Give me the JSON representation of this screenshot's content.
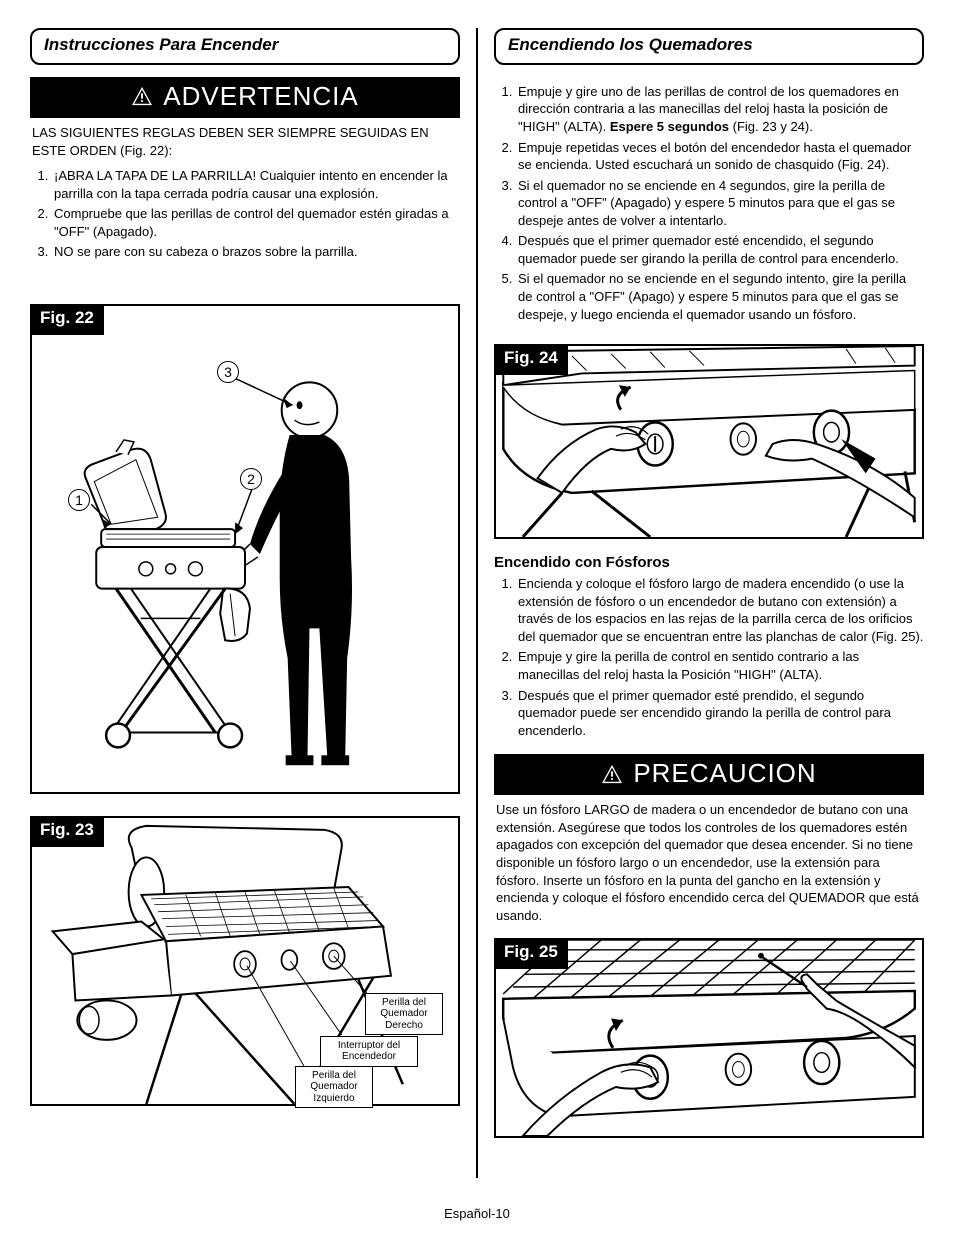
{
  "left": {
    "header": "Instrucciones Para Encender",
    "warning_label": "ADVERTENCIA",
    "intro": "LAS SIGUIENTES REGLAS DEBEN SER SIEMPRE SEGUIDAS EN ESTE ORDEN (Fig.  22):",
    "rules": [
      "¡ABRA LA TAPA DE LA PARRILLA! Cualquier intento en encender la parrilla con la tapa cerrada podría causar una explosión.",
      "Compruebe que las perillas de control del quemador estén giradas a \"OFF\" (Apagado).",
      "NO se pare  con su cabeza o brazos sobre la parrilla."
    ],
    "fig22": {
      "label": "Fig. 22",
      "callouts": {
        "c1": "1",
        "c2": "2",
        "c3": "3"
      }
    },
    "fig23": {
      "label": "Fig. 23",
      "box_right": "Perilla del\nQuemador\nDerecho",
      "box_mid": "Interruptor del\nEncendedor",
      "box_left": "Perilla del\nQuemador\nIzquierdo"
    }
  },
  "right": {
    "header": "Encendiendo los Quemadores",
    "steps": [
      {
        "pre": "Empuje y gire uno de las perillas de control de los quemadores en dirección contraria a las manecillas del reloj hasta la posición de  \"HIGH\" (ALTA). ",
        "bold": "Espere 5 segundos",
        "post": " (Fig.  23 y 24)."
      },
      {
        "pre": "Empuje repetidas veces el botón del encendedor hasta el quemador se encienda. Usted escuchará un sonido de chasquido (Fig.  24).",
        "bold": "",
        "post": ""
      },
      {
        "pre": "Si el quemador no se enciende en 4 segundos, gire la perilla de control a \"OFF\" (Apagado) y espere  5 minutos para que el gas se despeje antes de volver a  intentarlo.",
        "bold": "",
        "post": ""
      },
      {
        "pre": "Después que el primer quemador esté encendido, el segundo quemador puede ser girando la perilla de control para encenderlo.",
        "bold": "",
        "post": ""
      },
      {
        "pre": "Si el quemador no se enciende en el segundo intento, gire la perilla de control a \"OFF\" (Apago) y espere 5 minutos para que el gas se despeje, y luego encienda el quemador usando un  fósforo.",
        "bold": "",
        "post": ""
      }
    ],
    "fig24": {
      "label": "Fig. 24"
    },
    "match_header": "Encendido con Fósforos",
    "match_steps": [
      "Encienda y coloque el fósforo largo de madera encendido (o use la extensión de fósforo o un encendedor de butano con extensión) a través de los espacios en las rejas de la parrilla cerca de los orificios del quemador que se encuentran entre las planchas de calor (Fig.  25).",
      "Empuje y gire la perilla de control en sentido contrario a las manecillas del reloj hasta la Posición \"HIGH\" (ALTA).",
      "Después que el primer quemador esté prendido, el segundo quemador puede ser encendido girando la perilla de control para encenderlo."
    ],
    "caution_label": "PRECAUCION",
    "caution_text": "Use un fósforo LARGO de madera o un encendedor de butano con una extensión. Asegúrese que todos los controles de los quemadores estén apagados con excepción del quemador que desea encender. Si no tiene disponible un fósforo largo o un encendedor, use la extensión para fósforo. Inserte un fósforo en la punta del gancho en la extensión y encienda y coloque el fósforo encendido cerca del QUEMADOR que está usando.",
    "fig25": {
      "label": "Fig. 25"
    }
  },
  "footer": "Español-10"
}
